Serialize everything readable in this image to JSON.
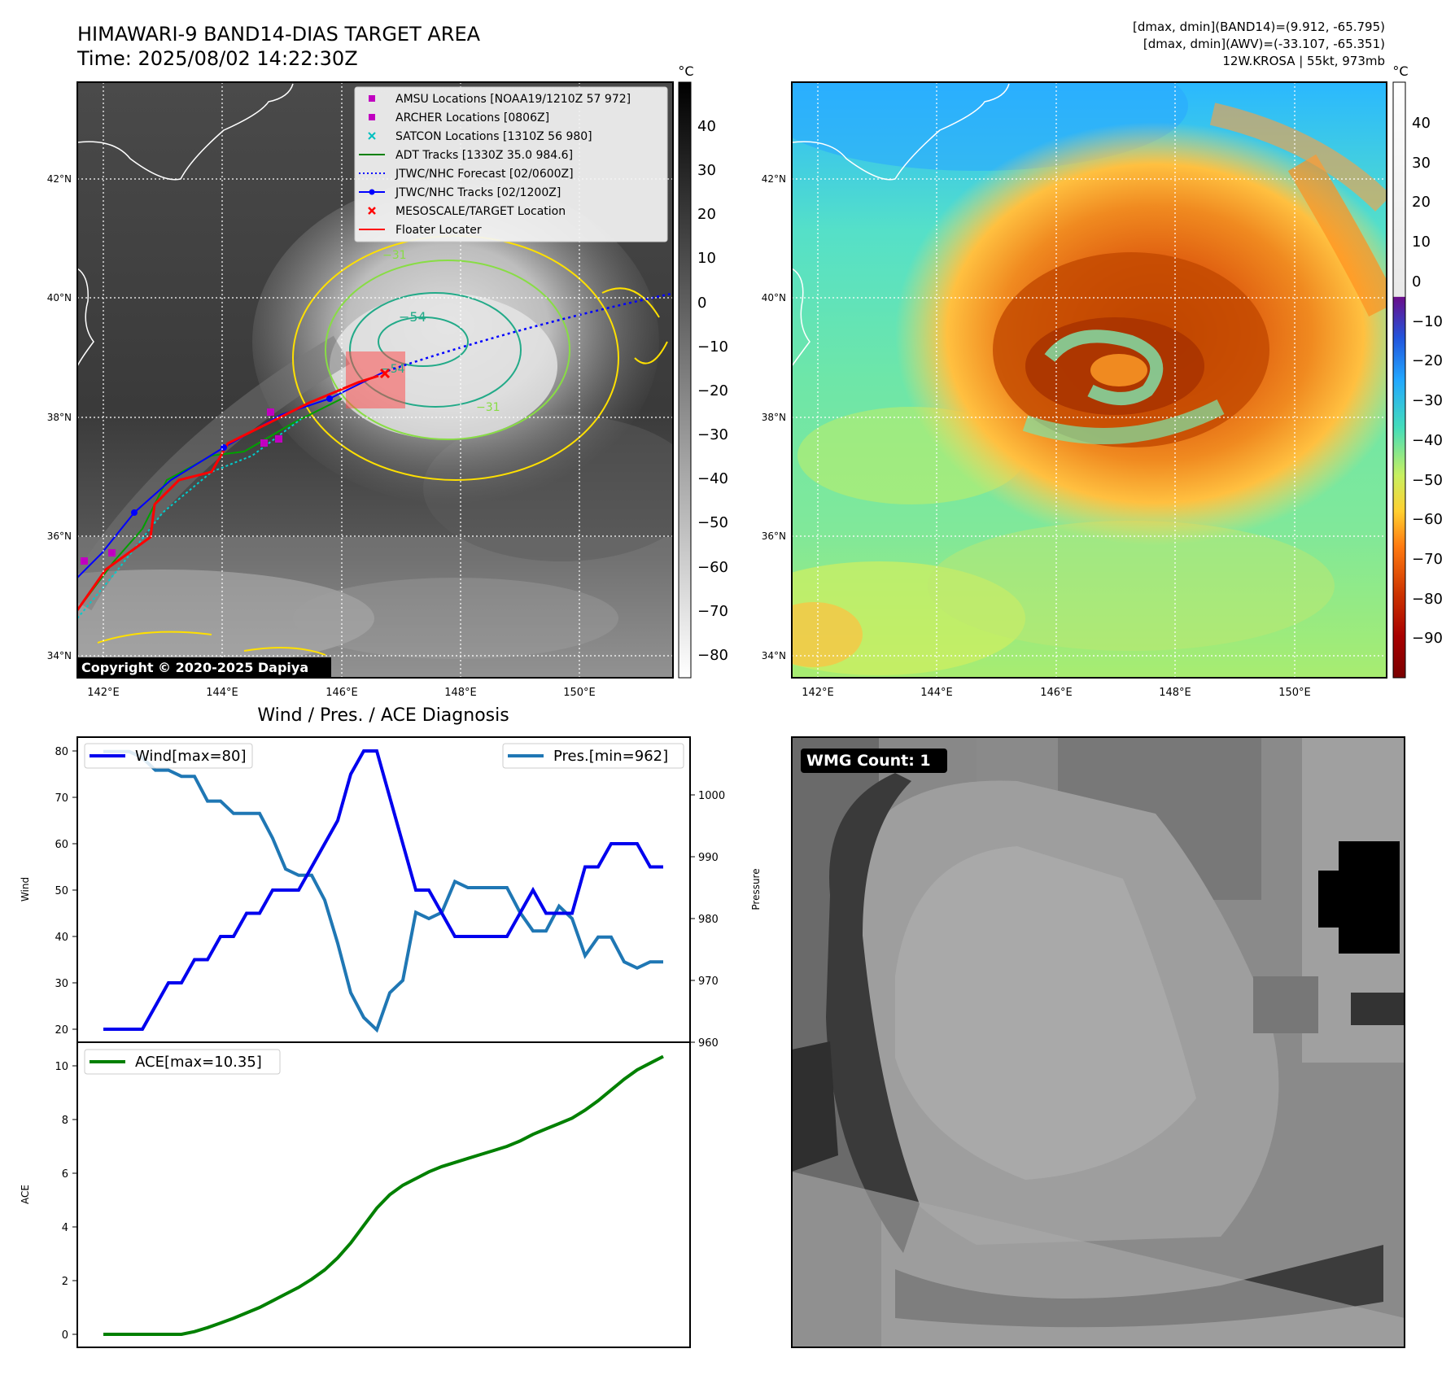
{
  "header": {
    "title_line1": "HIMAWARI-9 BAND14-DIAS TARGET AREA",
    "title_line2": "Time: 2025/08/02 14:22:30Z",
    "stats_line1": "[dmax, dmin](BAND14)=(9.912, -65.795)",
    "stats_line2": "[dmax, dmin](AWV)=(-33.107, -65.351)",
    "stats_line3": "12W.KROSA | 55kt, 973mb"
  },
  "copyright": "Copyright © 2020-2025 Dapiya",
  "map_axes": {
    "lon_ticks": [
      "142°E",
      "144°E",
      "146°E",
      "148°E",
      "150°E"
    ],
    "lat_ticks": [
      "42°N",
      "40°N",
      "38°N",
      "36°N",
      "34°N"
    ]
  },
  "colorbar_left": {
    "unit": "°C",
    "ticks": [
      "40",
      "30",
      "20",
      "10",
      "0",
      "−10",
      "−20",
      "−30",
      "−40",
      "−50",
      "−60",
      "−70",
      "−80"
    ]
  },
  "colorbar_right": {
    "unit": "°C",
    "ticks": [
      "40",
      "30",
      "20",
      "10",
      "0",
      "−10",
      "−20",
      "−30",
      "−40",
      "−50",
      "−60",
      "−70",
      "−80",
      "−90"
    ]
  },
  "contour_labels": [
    "−54",
    "−54",
    "−31",
    "−31"
  ],
  "legend": {
    "items": [
      {
        "label": "AMSU Locations [NOAA19/1210Z 57 972]",
        "marker": "square",
        "color": "#c000c0"
      },
      {
        "label": "ARCHER Locations [0806Z]",
        "marker": "square",
        "color": "#c000c0"
      },
      {
        "label": "SATCON Locations [1310Z 56 980]",
        "marker": "x",
        "color": "#00c0c0"
      },
      {
        "label": "ADT Tracks [1330Z 35.0 984.6]",
        "marker": "line",
        "color": "#008000"
      },
      {
        "label": "JTWC/NHC Forecast [02/0600Z]",
        "marker": "dotted",
        "color": "#0000ff"
      },
      {
        "label": "JTWC/NHC Tracks [02/1200Z]",
        "marker": "line-dot",
        "color": "#0000ff"
      },
      {
        "label": "MESOSCALE/TARGET Location",
        "marker": "x",
        "color": "#ff0000"
      },
      {
        "label": "Floater Locater",
        "marker": "line",
        "color": "#ff0000"
      }
    ]
  },
  "wind_panel": {
    "title": "Wind / Pres. / ACE Diagnosis",
    "ylabel_left": "Wind",
    "ylabel_right": "Pressure",
    "left_ticks": [
      "80",
      "70",
      "60",
      "50",
      "40",
      "30",
      "20"
    ],
    "right_ticks": [
      "1000",
      "990",
      "980",
      "970",
      "960"
    ],
    "legend_wind": "Wind[max=80]",
    "legend_pres": "Pres.[min=962]"
  },
  "ace_panel": {
    "ylabel": "ACE",
    "ticks": [
      "10",
      "8",
      "6",
      "4",
      "2",
      "0"
    ],
    "legend": "ACE[max=10.35]"
  },
  "wmg_label": "WMG Count: 1",
  "colors": {
    "wind": "#0000ee",
    "pressure": "#1f77b4",
    "ace": "#008000",
    "floater": "#ff0000",
    "forecast": "#0000ff"
  },
  "chart_data": [
    {
      "type": "line",
      "title": "Wind / Pres. / ACE Diagnosis",
      "ylabel": "Wind",
      "ylim": [
        18,
        83
      ],
      "series": [
        {
          "name": "Wind[max=80]",
          "values": [
            20,
            20,
            20,
            20,
            25,
            30,
            30,
            35,
            35,
            40,
            40,
            45,
            45,
            50,
            50,
            50,
            55,
            60,
            65,
            75,
            80,
            80,
            70,
            60,
            50,
            50,
            45,
            40,
            40,
            40,
            40,
            40,
            45,
            50,
            45,
            45,
            45,
            55,
            55,
            60,
            60,
            60,
            55,
            55
          ]
        }
      ]
    },
    {
      "type": "line",
      "ylabel": "Pressure",
      "ylim": [
        960,
        1008
      ],
      "series": [
        {
          "name": "Pres.[min=962]",
          "values": [
            1007,
            1007,
            1007,
            1006,
            1004,
            1004,
            1003,
            1003,
            999,
            999,
            997,
            997,
            997,
            993,
            988,
            987,
            987,
            983,
            976,
            968,
            964,
            962,
            968,
            970,
            981,
            980,
            981,
            986,
            985,
            985,
            985,
            985,
            981,
            978,
            978,
            982,
            980,
            974,
            977,
            977,
            973,
            972,
            973,
            973
          ]
        }
      ]
    },
    {
      "type": "line",
      "ylabel": "ACE",
      "ylim": [
        -0.5,
        10.9
      ],
      "series": [
        {
          "name": "ACE[max=10.35]",
          "values": [
            0,
            0,
            0,
            0,
            0,
            0,
            0,
            0.1,
            0.25,
            0.42,
            0.6,
            0.8,
            1.0,
            1.25,
            1.5,
            1.75,
            2.05,
            2.4,
            2.85,
            3.4,
            4.05,
            4.7,
            5.2,
            5.55,
            5.8,
            6.05,
            6.25,
            6.4,
            6.55,
            6.7,
            6.85,
            7.0,
            7.2,
            7.45,
            7.65,
            7.85,
            8.05,
            8.35,
            8.7,
            9.1,
            9.5,
            9.85,
            10.1,
            10.35
          ]
        }
      ]
    }
  ]
}
